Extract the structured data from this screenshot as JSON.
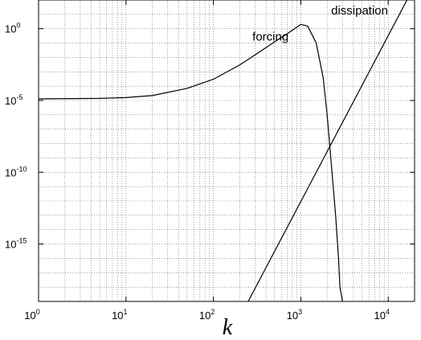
{
  "chart_data": {
    "type": "line",
    "title": "",
    "xlabel": "k",
    "ylabel": "",
    "x_scale": "log",
    "y_scale": "log",
    "xlim": [
      1,
      20000
    ],
    "ylim": [
      1e-19,
      100.0
    ],
    "grid": true,
    "x_ticks": [
      {
        "base": "10",
        "exp": "0",
        "value": 1
      },
      {
        "base": "10",
        "exp": "1",
        "value": 10
      },
      {
        "base": "10",
        "exp": "2",
        "value": 100
      },
      {
        "base": "10",
        "exp": "3",
        "value": 1000
      },
      {
        "base": "10",
        "exp": "4",
        "value": 10000
      }
    ],
    "y_ticks": [
      {
        "base": "10",
        "exp": "0",
        "value": 1
      },
      {
        "base": "10",
        "exp": "-5",
        "value": 1e-05
      },
      {
        "base": "10",
        "exp": "-10",
        "value": 1e-10
      },
      {
        "base": "10",
        "exp": "-15",
        "value": 1e-15
      }
    ],
    "series": [
      {
        "name": "forcing",
        "x": [
          1,
          5,
          10,
          20,
          50,
          100,
          200,
          300,
          500,
          700,
          1000,
          1200,
          1500,
          1800,
          2000,
          2200,
          2500,
          2700,
          2800,
          3000
        ],
        "y": [
          1.3e-05,
          1.4e-05,
          1.6e-05,
          2.2e-05,
          7e-05,
          0.0003,
          0.003,
          0.015,
          0.12,
          0.45,
          2.0,
          1.5,
          0.1,
          0.0004,
          1e-06,
          1e-09,
          1e-13,
          1e-16,
          1e-18,
          1e-19
        ]
      },
      {
        "name": "dissipation",
        "x": [
          250,
          20000
        ],
        "y": [
          1e-19,
          1000
        ]
      }
    ],
    "annotations": [
      {
        "text": "forcing",
        "x": 450,
        "y": 0.15
      },
      {
        "text": "dissipation",
        "x": 4700,
        "y": 10
      }
    ]
  }
}
